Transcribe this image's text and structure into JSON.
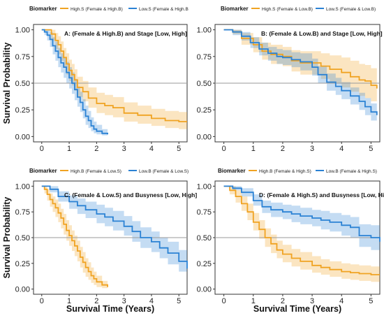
{
  "chart_data": [
    {
      "type": "line",
      "title": "A: (Female & High.B) and Stage [Low, High]",
      "legend_title": "Biomarker",
      "ylabel": "Survival Probability",
      "xlabel": "",
      "xlim": [
        -0.3,
        5.3
      ],
      "ylim": [
        -0.05,
        1.05
      ],
      "xticks": [
        0,
        1,
        2,
        3,
        4,
        5
      ],
      "yticks": [
        "0.00",
        "0.25",
        "0.50",
        "0.75",
        "1.00"
      ],
      "reference_line_y": 0.5,
      "series": [
        {
          "name": "High.S (Female & High.B)",
          "color": "#f0a322",
          "x": [
            0,
            0.2,
            0.35,
            0.5,
            0.6,
            0.7,
            0.8,
            0.9,
            1.0,
            1.1,
            1.2,
            1.3,
            1.5,
            1.7,
            2.0,
            2.3,
            2.6,
            3.0,
            3.5,
            4.0,
            4.5,
            5.0,
            5.3
          ],
          "y": [
            1.0,
            1.0,
            0.96,
            0.9,
            0.86,
            0.8,
            0.74,
            0.68,
            0.62,
            0.58,
            0.53,
            0.46,
            0.42,
            0.36,
            0.31,
            0.29,
            0.27,
            0.22,
            0.2,
            0.17,
            0.15,
            0.14,
            0.14
          ],
          "lower": [
            1.0,
            1.0,
            0.9,
            0.82,
            0.77,
            0.71,
            0.65,
            0.58,
            0.52,
            0.48,
            0.43,
            0.37,
            0.33,
            0.27,
            0.22,
            0.2,
            0.18,
            0.14,
            0.12,
            0.1,
            0.08,
            0.07,
            0.07
          ],
          "upper": [
            1.0,
            1.0,
            1.0,
            0.97,
            0.94,
            0.89,
            0.83,
            0.78,
            0.72,
            0.68,
            0.63,
            0.56,
            0.52,
            0.46,
            0.41,
            0.39,
            0.37,
            0.32,
            0.29,
            0.26,
            0.24,
            0.23,
            0.23
          ]
        },
        {
          "name": "Low.S (Female & High.B",
          "color": "#2b82d4",
          "x": [
            0,
            0.1,
            0.2,
            0.3,
            0.4,
            0.5,
            0.6,
            0.7,
            0.8,
            0.9,
            1.0,
            1.1,
            1.2,
            1.3,
            1.4,
            1.5,
            1.6,
            1.7,
            1.8,
            1.9,
            2.0,
            2.2,
            2.4
          ],
          "y": [
            1.0,
            0.98,
            0.95,
            0.91,
            0.85,
            0.8,
            0.74,
            0.69,
            0.65,
            0.6,
            0.55,
            0.5,
            0.44,
            0.37,
            0.32,
            0.25,
            0.19,
            0.15,
            0.1,
            0.07,
            0.05,
            0.03,
            0.02
          ],
          "lower": [
            1.0,
            0.95,
            0.9,
            0.84,
            0.77,
            0.71,
            0.65,
            0.6,
            0.55,
            0.5,
            0.45,
            0.4,
            0.34,
            0.28,
            0.23,
            0.17,
            0.11,
            0.08,
            0.05,
            0.03,
            0.02,
            0.01,
            0.01
          ],
          "upper": [
            1.0,
            1.0,
            1.0,
            0.98,
            0.93,
            0.89,
            0.83,
            0.78,
            0.74,
            0.7,
            0.65,
            0.6,
            0.54,
            0.47,
            0.42,
            0.35,
            0.29,
            0.24,
            0.18,
            0.14,
            0.11,
            0.07,
            0.05
          ]
        }
      ]
    },
    {
      "type": "line",
      "title": "B: (Female & Low.B) and Stage [Low, High]",
      "legend_title": "Biomarker",
      "ylabel": "",
      "xlabel": "",
      "xlim": [
        -0.3,
        5.3
      ],
      "ylim": [
        -0.05,
        1.05
      ],
      "xticks": [
        0,
        1,
        2,
        3,
        4,
        5
      ],
      "yticks": [
        "0.00",
        "0.25",
        "0.50",
        "0.75",
        "1.00"
      ],
      "reference_line_y": 0.5,
      "series": [
        {
          "name": "High.S (Female & Low.B)",
          "color": "#f0a322",
          "x": [
            0,
            0.3,
            0.6,
            1.0,
            1.3,
            1.6,
            2.0,
            2.3,
            2.6,
            3.0,
            3.3,
            3.6,
            4.0,
            4.3,
            4.6,
            4.8,
            5.0,
            5.2
          ],
          "y": [
            1.0,
            0.98,
            0.92,
            0.86,
            0.8,
            0.77,
            0.75,
            0.71,
            0.69,
            0.69,
            0.66,
            0.63,
            0.6,
            0.56,
            0.53,
            0.52,
            0.48,
            0.45
          ],
          "lower": [
            1.0,
            0.96,
            0.86,
            0.79,
            0.72,
            0.68,
            0.66,
            0.61,
            0.58,
            0.58,
            0.54,
            0.5,
            0.46,
            0.42,
            0.38,
            0.36,
            0.33,
            0.3
          ],
          "upper": [
            1.0,
            1.0,
            0.97,
            0.93,
            0.88,
            0.86,
            0.84,
            0.81,
            0.8,
            0.8,
            0.78,
            0.76,
            0.74,
            0.71,
            0.68,
            0.67,
            0.64,
            0.62
          ]
        },
        {
          "name": "Low.S (Female & Low.B)",
          "color": "#2b82d4",
          "x": [
            0,
            0.3,
            0.6,
            0.9,
            1.2,
            1.5,
            1.8,
            2.0,
            2.3,
            2.6,
            3.0,
            3.2,
            3.5,
            3.8,
            4.0,
            4.3,
            4.6,
            4.8,
            5.0,
            5.2
          ],
          "y": [
            1.0,
            0.98,
            0.94,
            0.88,
            0.82,
            0.78,
            0.75,
            0.74,
            0.72,
            0.7,
            0.65,
            0.58,
            0.51,
            0.47,
            0.43,
            0.38,
            0.33,
            0.28,
            0.23,
            0.2
          ],
          "lower": [
            1.0,
            0.95,
            0.9,
            0.83,
            0.76,
            0.71,
            0.68,
            0.67,
            0.65,
            0.62,
            0.57,
            0.5,
            0.43,
            0.39,
            0.35,
            0.3,
            0.25,
            0.2,
            0.15,
            0.12
          ],
          "upper": [
            1.0,
            1.0,
            0.98,
            0.93,
            0.88,
            0.84,
            0.82,
            0.81,
            0.79,
            0.78,
            0.73,
            0.66,
            0.59,
            0.55,
            0.51,
            0.46,
            0.41,
            0.36,
            0.31,
            0.28
          ]
        }
      ]
    },
    {
      "type": "line",
      "title": "C: (Female & Low.S) and Busyness [Low, High]",
      "legend_title": "Biomarker",
      "ylabel": "Survival Probability",
      "xlabel": "Survival Time (Years)",
      "xlim": [
        -0.3,
        5.3
      ],
      "ylim": [
        -0.05,
        1.05
      ],
      "xticks": [
        0,
        1,
        2,
        3,
        4,
        5
      ],
      "yticks": [
        "0.00",
        "0.25",
        "0.50",
        "0.75",
        "1.00"
      ],
      "reference_line_y": 0.5,
      "series": [
        {
          "name": "High.B (Female & Low.S)",
          "color": "#f0a322",
          "x": [
            0,
            0.1,
            0.2,
            0.3,
            0.4,
            0.5,
            0.6,
            0.7,
            0.8,
            0.9,
            1.0,
            1.1,
            1.2,
            1.3,
            1.4,
            1.5,
            1.6,
            1.7,
            1.8,
            1.9,
            2.0,
            2.2,
            2.4
          ],
          "y": [
            1.0,
            0.97,
            0.92,
            0.87,
            0.83,
            0.79,
            0.74,
            0.69,
            0.63,
            0.57,
            0.52,
            0.47,
            0.42,
            0.37,
            0.31,
            0.26,
            0.21,
            0.17,
            0.13,
            0.1,
            0.07,
            0.04,
            0.02
          ],
          "lower": [
            1.0,
            0.93,
            0.86,
            0.8,
            0.75,
            0.7,
            0.65,
            0.59,
            0.53,
            0.47,
            0.42,
            0.37,
            0.32,
            0.27,
            0.21,
            0.16,
            0.12,
            0.09,
            0.06,
            0.04,
            0.02,
            0.01,
            0.0
          ],
          "upper": [
            1.0,
            1.0,
            0.97,
            0.93,
            0.9,
            0.87,
            0.83,
            0.78,
            0.73,
            0.67,
            0.62,
            0.57,
            0.52,
            0.47,
            0.41,
            0.36,
            0.3,
            0.26,
            0.21,
            0.17,
            0.13,
            0.08,
            0.05
          ]
        },
        {
          "name": "Low.B (Female & Low.S)",
          "color": "#2b82d4",
          "x": [
            0,
            0.3,
            0.6,
            1.0,
            1.3,
            1.6,
            2.0,
            2.3,
            2.6,
            3.0,
            3.3,
            3.6,
            4.0,
            4.3,
            4.6,
            5.0,
            5.3
          ],
          "y": [
            1.0,
            0.97,
            0.9,
            0.85,
            0.81,
            0.77,
            0.73,
            0.7,
            0.66,
            0.61,
            0.56,
            0.5,
            0.46,
            0.4,
            0.35,
            0.27,
            0.2
          ],
          "lower": [
            1.0,
            0.94,
            0.85,
            0.78,
            0.73,
            0.69,
            0.64,
            0.61,
            0.57,
            0.52,
            0.46,
            0.4,
            0.36,
            0.3,
            0.24,
            0.17,
            0.11
          ],
          "upper": [
            1.0,
            1.0,
            0.95,
            0.91,
            0.88,
            0.85,
            0.82,
            0.79,
            0.76,
            0.71,
            0.66,
            0.6,
            0.56,
            0.5,
            0.46,
            0.38,
            0.31
          ]
        }
      ]
    },
    {
      "type": "line",
      "title": "D: (Female & High.S) and Busyness [Low, High]",
      "legend_title": "Biomarker",
      "ylabel": "",
      "xlabel": "Survival Time (Years)",
      "xlim": [
        -0.3,
        5.3
      ],
      "ylim": [
        -0.05,
        1.05
      ],
      "xticks": [
        0,
        1,
        2,
        3,
        4,
        5
      ],
      "yticks": [
        "0.00",
        "0.25",
        "0.50",
        "0.75",
        "1.00"
      ],
      "reference_line_y": 0.5,
      "series": [
        {
          "name": "High.B (Female & High.S)",
          "color": "#f0a322",
          "x": [
            0,
            0.2,
            0.4,
            0.6,
            0.8,
            1.0,
            1.2,
            1.4,
            1.6,
            1.8,
            2.0,
            2.3,
            2.6,
            3.0,
            3.3,
            3.6,
            4.0,
            4.3,
            4.6,
            5.0,
            5.3
          ],
          "y": [
            1.0,
            0.96,
            0.9,
            0.83,
            0.75,
            0.65,
            0.58,
            0.5,
            0.44,
            0.38,
            0.34,
            0.3,
            0.27,
            0.23,
            0.21,
            0.19,
            0.17,
            0.16,
            0.15,
            0.14,
            0.14
          ],
          "lower": [
            1.0,
            0.92,
            0.84,
            0.76,
            0.67,
            0.57,
            0.49,
            0.41,
            0.35,
            0.3,
            0.26,
            0.22,
            0.19,
            0.16,
            0.14,
            0.12,
            0.1,
            0.09,
            0.08,
            0.07,
            0.07
          ],
          "upper": [
            1.0,
            1.0,
            0.96,
            0.9,
            0.83,
            0.74,
            0.67,
            0.59,
            0.53,
            0.47,
            0.43,
            0.39,
            0.36,
            0.32,
            0.29,
            0.27,
            0.25,
            0.24,
            0.23,
            0.22,
            0.22
          ]
        },
        {
          "name": "Low.B (Female & High.S)",
          "color": "#2b82d4",
          "x": [
            0,
            0.3,
            0.6,
            1.0,
            1.3,
            1.6,
            2.0,
            2.3,
            2.6,
            3.0,
            3.3,
            3.6,
            4.0,
            4.3,
            4.6,
            5.0,
            5.3
          ],
          "y": [
            1.0,
            0.98,
            0.94,
            0.86,
            0.8,
            0.77,
            0.75,
            0.73,
            0.71,
            0.69,
            0.67,
            0.65,
            0.62,
            0.6,
            0.52,
            0.5,
            0.46
          ],
          "lower": [
            1.0,
            0.96,
            0.9,
            0.81,
            0.74,
            0.7,
            0.68,
            0.65,
            0.63,
            0.61,
            0.58,
            0.56,
            0.52,
            0.5,
            0.41,
            0.38,
            0.33
          ],
          "upper": [
            1.0,
            1.0,
            0.98,
            0.92,
            0.86,
            0.84,
            0.82,
            0.81,
            0.79,
            0.77,
            0.76,
            0.74,
            0.72,
            0.7,
            0.63,
            0.62,
            0.59
          ]
        }
      ]
    }
  ]
}
